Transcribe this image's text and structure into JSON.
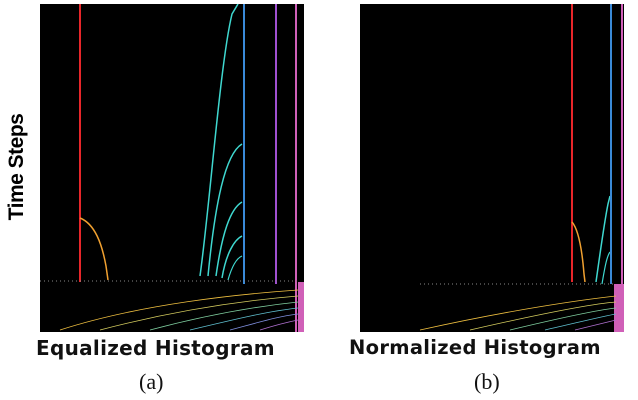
{
  "y_axis_label": "Time Steps",
  "panels": [
    {
      "id": "a",
      "title": "Equalized Histogram",
      "label": "(a)"
    },
    {
      "id": "b",
      "title": "Normalized Histogram",
      "label": "(b)"
    }
  ],
  "colors": {
    "background": "#000000",
    "red": "#e8262a",
    "orange": "#f0a030",
    "cyan": "#3fd8d0",
    "blue": "#3a8ad8",
    "purple": "#a050d0",
    "magenta": "#d060b8"
  }
}
